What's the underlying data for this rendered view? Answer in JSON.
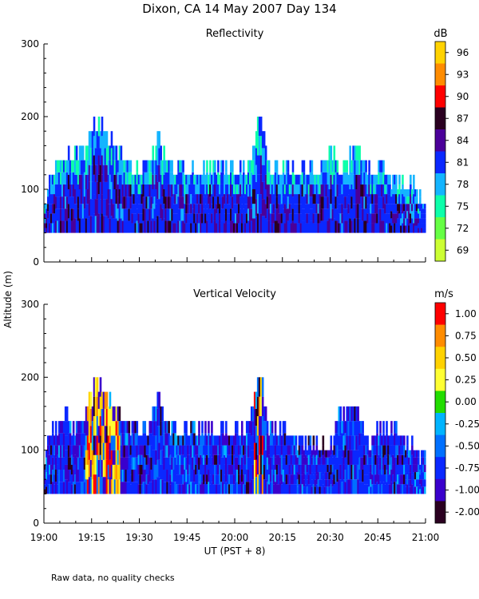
{
  "figure": {
    "title": "Dixon, CA 14 May 2007  Day 134",
    "ylabel": "Altitude (m)",
    "xlabel": "UT  (PST + 8)",
    "footnote": "Raw data, no quality checks",
    "x_ticks": [
      "19:00",
      "19:15",
      "19:30",
      "19:45",
      "20:00",
      "20:15",
      "20:30",
      "20:45",
      "21:00"
    ]
  },
  "chart_data": [
    {
      "type": "heatmap",
      "title": "Reflectivity",
      "units": "dB",
      "x_range": [
        "19:00",
        "21:00"
      ],
      "ylim": [
        0,
        300
      ],
      "y_ticks": [
        "0",
        "100",
        "200",
        "300"
      ],
      "colorbar": {
        "ticks": [
          "96",
          "93",
          "90",
          "87",
          "84",
          "81",
          "78",
          "75",
          "72",
          "69"
        ],
        "colors": [
          "#ffd200",
          "#ff8c00",
          "#ff0000",
          "#2a0020",
          "#4b0099",
          "#0a28ff",
          "#14b4ff",
          "#0dffaa",
          "#66ff44",
          "#ccff33"
        ]
      },
      "approx_echo_top_m": [
        {
          "time": "19:00",
          "top": 100
        },
        {
          "time": "19:03",
          "top": 140
        },
        {
          "time": "19:07",
          "top": 160
        },
        {
          "time": "19:10",
          "top": 160
        },
        {
          "time": "19:14",
          "top": 180
        },
        {
          "time": "19:15",
          "top": 200
        },
        {
          "time": "19:18",
          "top": 200
        },
        {
          "time": "19:21",
          "top": 180
        },
        {
          "time": "19:24",
          "top": 160
        },
        {
          "time": "19:28",
          "top": 140
        },
        {
          "time": "19:32",
          "top": 140
        },
        {
          "time": "19:36",
          "top": 180
        },
        {
          "time": "19:40",
          "top": 140
        },
        {
          "time": "19:45",
          "top": 140
        },
        {
          "time": "19:50",
          "top": 140
        },
        {
          "time": "19:55",
          "top": 140
        },
        {
          "time": "20:00",
          "top": 140
        },
        {
          "time": "20:04",
          "top": 140
        },
        {
          "time": "20:08",
          "top": 220
        },
        {
          "time": "20:11",
          "top": 140
        },
        {
          "time": "20:15",
          "top": 140
        },
        {
          "time": "20:20",
          "top": 140
        },
        {
          "time": "20:25",
          "top": 140
        },
        {
          "time": "20:30",
          "top": 160
        },
        {
          "time": "20:35",
          "top": 140
        },
        {
          "time": "20:38",
          "top": 180
        },
        {
          "time": "20:42",
          "top": 140
        },
        {
          "time": "20:46",
          "top": 140
        },
        {
          "time": "20:50",
          "top": 120
        },
        {
          "time": "20:55",
          "top": 120
        },
        {
          "time": "21:00",
          "top": 100
        }
      ],
      "echo_base_m": 40
    },
    {
      "type": "heatmap",
      "title": "Vertical Velocity",
      "units": "m/s",
      "x_range": [
        "19:00",
        "21:00"
      ],
      "ylim": [
        0,
        300
      ],
      "y_ticks": [
        "0",
        "100",
        "200",
        "300"
      ],
      "colorbar": {
        "ticks": [
          "1.00",
          "0.75",
          "0.50",
          "0.25",
          "0.00",
          "-0.25",
          "-0.50",
          "-0.75",
          "-1.00",
          "-2.00"
        ],
        "colors": [
          "#ff0000",
          "#ff8c00",
          "#ffd200",
          "#ffff33",
          "#22dd00",
          "#00b4ff",
          "#0070ff",
          "#0a28ff",
          "#3a00cc",
          "#2a0020"
        ]
      },
      "approx_echo_top_m": [
        {
          "time": "19:00",
          "top": 100
        },
        {
          "time": "19:03",
          "top": 140
        },
        {
          "time": "19:07",
          "top": 160
        },
        {
          "time": "19:10",
          "top": 140
        },
        {
          "time": "19:14",
          "top": 180
        },
        {
          "time": "19:16",
          "top": 200
        },
        {
          "time": "19:18",
          "top": 200
        },
        {
          "time": "19:21",
          "top": 180
        },
        {
          "time": "19:24",
          "top": 160
        },
        {
          "time": "19:28",
          "top": 140
        },
        {
          "time": "19:32",
          "top": 140
        },
        {
          "time": "19:36",
          "top": 180
        },
        {
          "time": "19:40",
          "top": 140
        },
        {
          "time": "19:45",
          "top": 140
        },
        {
          "time": "19:50",
          "top": 140
        },
        {
          "time": "19:55",
          "top": 140
        },
        {
          "time": "20:00",
          "top": 140
        },
        {
          "time": "20:04",
          "top": 140
        },
        {
          "time": "20:08",
          "top": 220
        },
        {
          "time": "20:11",
          "top": 140
        },
        {
          "time": "20:15",
          "top": 140
        },
        {
          "time": "20:20",
          "top": 120
        },
        {
          "time": "20:25",
          "top": 120
        },
        {
          "time": "20:30",
          "top": 120
        },
        {
          "time": "20:33",
          "top": 160
        },
        {
          "time": "20:38",
          "top": 180
        },
        {
          "time": "20:42",
          "top": 120
        },
        {
          "time": "20:46",
          "top": 140
        },
        {
          "time": "20:50",
          "top": 140
        },
        {
          "time": "20:55",
          "top": 120
        },
        {
          "time": "21:00",
          "top": 100
        }
      ],
      "echo_base_m": 40
    }
  ]
}
